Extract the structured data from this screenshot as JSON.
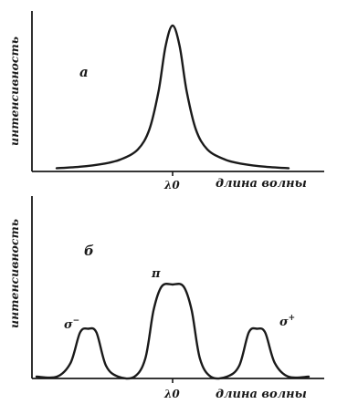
{
  "chart_data": [
    {
      "type": "line",
      "panel_label": "а",
      "ylabel": "интенсивность",
      "xlabel": "длина волны",
      "xtick_label": "λ0",
      "x": [
        -1.0,
        -0.8,
        -0.6,
        -0.45,
        -0.3,
        -0.2,
        -0.12,
        -0.06,
        0.0,
        0.06,
        0.12,
        0.2,
        0.3,
        0.45,
        0.6,
        0.8,
        1.0
      ],
      "series": [
        {
          "values": [
            0.01,
            0.02,
            0.04,
            0.07,
            0.14,
            0.28,
            0.55,
            0.86,
            1.0,
            0.86,
            0.55,
            0.28,
            0.14,
            0.07,
            0.04,
            0.02,
            0.01
          ]
        }
      ],
      "xlim": [
        -1.0,
        1.0
      ],
      "ylim": [
        0,
        1.0
      ]
    },
    {
      "type": "line",
      "panel_label": "б",
      "ylabel": "интенсивность",
      "xlabel": "длина волны",
      "xtick_label": "λ0",
      "x": [
        -1.0,
        -0.85,
        -0.75,
        -0.68,
        -0.62,
        -0.56,
        -0.49,
        -0.4,
        -0.28,
        -0.2,
        -0.14,
        -0.08,
        0.0,
        0.08,
        0.14,
        0.2,
        0.28,
        0.4,
        0.49,
        0.56,
        0.62,
        0.68,
        0.75,
        0.85,
        1.0
      ],
      "series": [
        {
          "values": [
            0.0,
            0.0,
            0.15,
            0.48,
            0.52,
            0.48,
            0.12,
            0.0,
            0.0,
            0.2,
            0.72,
            0.98,
            1.0,
            0.98,
            0.72,
            0.2,
            0.0,
            0.0,
            0.12,
            0.48,
            0.52,
            0.48,
            0.15,
            0.0,
            0.0
          ]
        }
      ],
      "peak_labels": [
        {
          "text": "σ",
          "sup": "−",
          "x": -0.62
        },
        {
          "text": "π",
          "sup": "",
          "x": 0.0
        },
        {
          "text": "σ",
          "sup": "+",
          "x": 0.62
        }
      ],
      "xlim": [
        -1.0,
        1.0
      ],
      "ylim": [
        0,
        1.0
      ]
    }
  ]
}
